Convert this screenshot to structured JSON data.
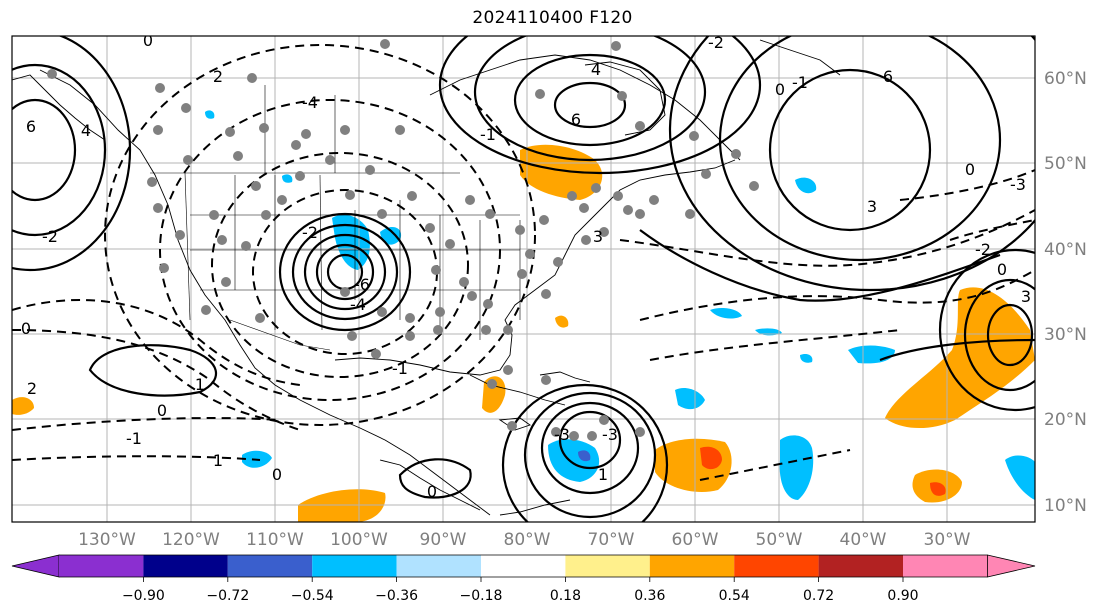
{
  "title": "2024110400 F120",
  "map": {
    "extent_lon": [
      -141,
      -20
    ],
    "extent_lat": [
      8,
      64
    ],
    "lat_labels": [
      "10°N",
      "20°N",
      "30°N",
      "40°N",
      "50°N",
      "60°N"
    ],
    "lon_labels": [
      "130°W",
      "120°W",
      "110°W",
      "100°W",
      "90°W",
      "80°W",
      "70°W",
      "60°W",
      "50°W",
      "40°W",
      "30°W"
    ],
    "grid": true,
    "station_marker_color": "#808080",
    "contour_labels": [
      "0",
      "2",
      "-4",
      "6",
      "4",
      "-2",
      "0",
      "-2",
      "-6",
      "-4",
      "1",
      "2",
      "-1",
      "0",
      "1",
      "-1",
      "0",
      "0",
      "1",
      "-3",
      "-3",
      "6",
      "4",
      "-1",
      "-2",
      "0",
      "3",
      "-3",
      "3",
      "0",
      "0",
      "-1",
      "6",
      "-2",
      "3"
    ]
  },
  "colorbar": {
    "tick_labels": [
      "−0.90",
      "−0.72",
      "−0.54",
      "−0.36",
      "−0.18",
      "0.18",
      "0.36",
      "0.54",
      "0.72",
      "0.90"
    ],
    "colors": [
      "#8b2fd0",
      "#00008b",
      "#3a5fcd",
      "#00bfff",
      "#b0e2ff",
      "#ffffff",
      "#fff08c",
      "#ffa500",
      "#ff4500",
      "#b22222",
      "#ff86b4"
    ],
    "extend": "both"
  }
}
